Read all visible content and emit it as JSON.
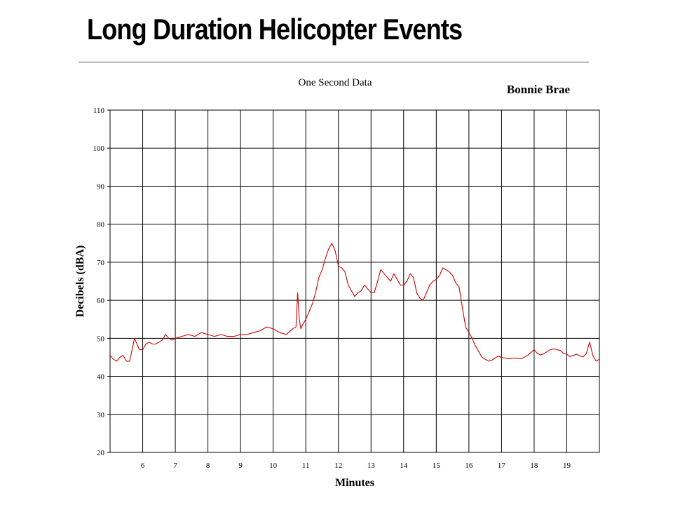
{
  "slide": {
    "title": "Long Duration Helicopter Events"
  },
  "chart_data": {
    "type": "line",
    "title": "One Second Data",
    "annotation": "Bonnie Brae",
    "xlabel": "Minutes",
    "ylabel": "Decibels (dBA)",
    "xlim": [
      5,
      20
    ],
    "ylim": [
      20,
      110
    ],
    "xticks": [
      6,
      7,
      8,
      9,
      10,
      11,
      12,
      13,
      14,
      15,
      16,
      17,
      18,
      19
    ],
    "yticks": [
      20,
      30,
      40,
      50,
      60,
      70,
      80,
      90,
      100,
      110
    ],
    "grid": true,
    "line_color": "#cc0000",
    "series": [
      {
        "x": [
          5.0,
          5.1,
          5.2,
          5.3,
          5.4,
          5.5,
          5.6,
          5.7,
          5.75,
          5.8,
          5.9,
          6.0,
          6.1,
          6.2,
          6.3,
          6.4,
          6.5,
          6.6,
          6.7,
          6.8,
          6.9,
          7.0,
          7.2,
          7.4,
          7.6,
          7.8,
          8.0,
          8.2,
          8.4,
          8.6,
          8.8,
          9.0,
          9.2,
          9.4,
          9.6,
          9.8,
          10.0,
          10.2,
          10.4,
          10.6,
          10.7,
          10.75,
          10.8,
          10.85,
          10.9,
          11.0,
          11.1,
          11.2,
          11.3,
          11.4,
          11.5,
          11.6,
          11.7,
          11.8,
          11.85,
          11.9,
          11.95,
          12.0,
          12.1,
          12.2,
          12.3,
          12.4,
          12.5,
          12.6,
          12.7,
          12.8,
          12.9,
          13.0,
          13.1,
          13.2,
          13.3,
          13.4,
          13.5,
          13.6,
          13.7,
          13.8,
          13.9,
          14.0,
          14.1,
          14.2,
          14.3,
          14.4,
          14.5,
          14.6,
          14.7,
          14.8,
          14.9,
          15.0,
          15.1,
          15.2,
          15.3,
          15.4,
          15.5,
          15.6,
          15.7,
          15.8,
          15.9,
          16.0,
          16.1,
          16.2,
          16.3,
          16.4,
          16.5,
          16.6,
          16.7,
          16.8,
          16.9,
          17.0,
          17.2,
          17.4,
          17.6,
          17.8,
          18.0,
          18.1,
          18.2,
          18.3,
          18.4,
          18.5,
          18.6,
          18.7,
          18.8,
          18.9,
          19.0,
          19.1,
          19.2,
          19.3,
          19.4,
          19.5,
          19.6,
          19.7,
          19.8,
          19.9,
          20.0
        ],
        "y": [
          45.5,
          44.5,
          44,
          45,
          45.5,
          44,
          44,
          48,
          50,
          49,
          47,
          47,
          48.5,
          49,
          48.5,
          48.5,
          49,
          49.5,
          51,
          50,
          49.5,
          50,
          50.5,
          51,
          50.5,
          51.5,
          51,
          50.5,
          51,
          50.5,
          50.5,
          51,
          51,
          51.5,
          52,
          53,
          52.5,
          51.5,
          51,
          52.5,
          53,
          62,
          55,
          52.5,
          53.5,
          55,
          57,
          59,
          62,
          66,
          68,
          71,
          73.5,
          75,
          74,
          73,
          71,
          69,
          68.5,
          67.5,
          64,
          62.5,
          61,
          62,
          62.5,
          64,
          63,
          62,
          62,
          65,
          68,
          67,
          66,
          65,
          67,
          65.5,
          64,
          64,
          65,
          67,
          66,
          62,
          60.5,
          60,
          62,
          64,
          65,
          65.5,
          66.5,
          68.5,
          68,
          67.5,
          66.5,
          64.5,
          63.5,
          58,
          53,
          51.5,
          50,
          48,
          46.5,
          45,
          44.5,
          44,
          44.2,
          44.8,
          45.3,
          45,
          44.6,
          44.8,
          44.6,
          45.5,
          47,
          46,
          45.6,
          46,
          46.5,
          47,
          47.2,
          47,
          46.8,
          46,
          45.8,
          45.2,
          45.5,
          45.8,
          45.4,
          45.1,
          46,
          49,
          45.5,
          44,
          44.5
        ]
      }
    ]
  }
}
